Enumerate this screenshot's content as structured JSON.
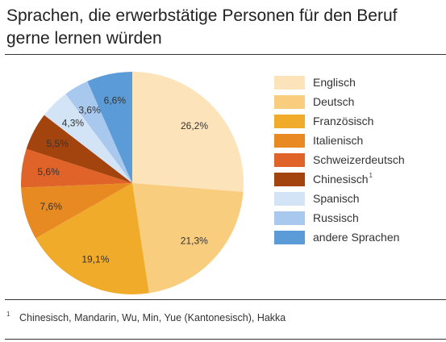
{
  "chart_data": {
    "type": "pie",
    "title": "Sprachen, die erwerbstätige Personen für den Beruf gerne lernen würden",
    "categories": [
      "Englisch",
      "Deutsch",
      "Französisch",
      "Italienisch",
      "Schweizerdeutsch",
      "Chinesisch",
      "Spanisch",
      "Russisch",
      "andere Sprachen"
    ],
    "values": [
      26.2,
      21.3,
      19.1,
      7.6,
      5.6,
      5.5,
      4.3,
      3.6,
      6.6
    ],
    "value_labels": [
      "26,2%",
      "21,3%",
      "19,1%",
      "7,6%",
      "5,6%",
      "5,5%",
      "4,3%",
      "3,6%",
      "6,6%"
    ],
    "colors": [
      "#fde3b9",
      "#f9cd7e",
      "#f0ab2b",
      "#e88a22",
      "#e0642a",
      "#a3440f",
      "#d3e4f6",
      "#a8c8ee",
      "#5b9cd8"
    ],
    "footnote_refs": [
      null,
      null,
      null,
      null,
      null,
      "1",
      null,
      null,
      null
    ],
    "footnote": {
      "marker": "1",
      "text": "Chinesisch, Mandarin, Wu, Min, Yue (Kantonesisch), Hakka"
    }
  }
}
